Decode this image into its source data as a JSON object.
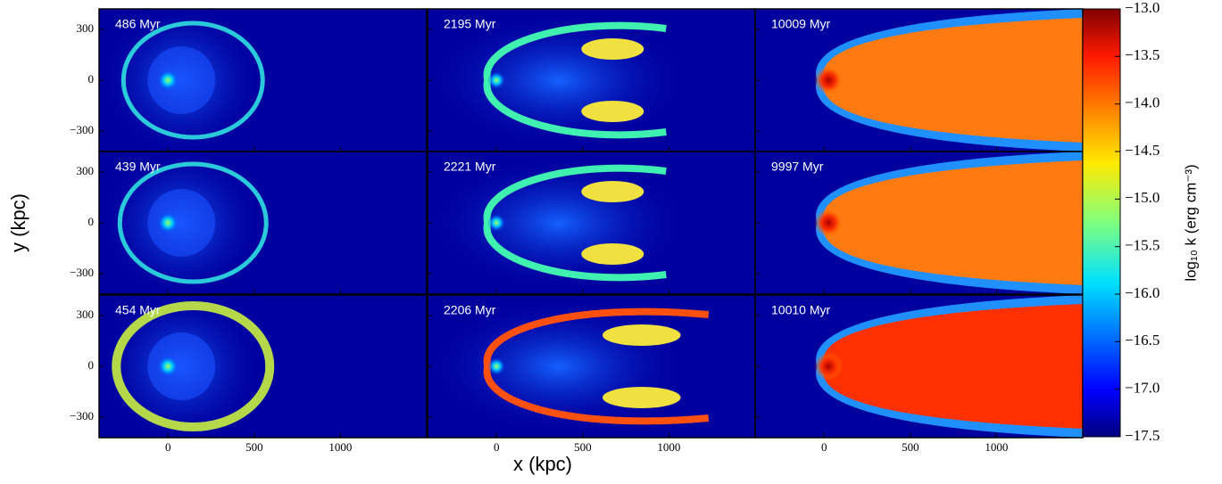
{
  "chart_data": {
    "type": "image-grid",
    "xlabel": "x (kpc)",
    "ylabel": "y (kpc)",
    "xlim": [
      -400,
      1500
    ],
    "xticks": [
      0,
      500,
      1000
    ],
    "ylim": [
      -420,
      420
    ],
    "yticks": [
      {
        "value": -300,
        "label": "−300"
      },
      0,
      300
    ],
    "colormap": "jet",
    "panels": [
      {
        "label": "486 Myr"
      },
      {
        "label": "2195 Myr"
      },
      {
        "label": "10009 Myr"
      },
      {
        "label": "439 Myr"
      },
      {
        "label": "2221 Myr"
      },
      {
        "label": "9997 Myr"
      },
      {
        "label": "454 Myr"
      },
      {
        "label": "2206 Myr"
      },
      {
        "label": "10010 Myr"
      }
    ],
    "colorbar": {
      "label": "log₁₀ k (erg cm⁻³)",
      "lim": [
        -17.5,
        -13.0
      ],
      "ticks": [
        {
          "value": -13.0,
          "label": "−13.0"
        },
        {
          "value": -13.5,
          "label": "−13.5"
        },
        {
          "value": -14.0,
          "label": "−14.0"
        },
        {
          "value": -14.5,
          "label": "−14.5"
        },
        {
          "value": -15.0,
          "label": "−15.0"
        },
        {
          "value": -15.5,
          "label": "−15.5"
        },
        {
          "value": -16.0,
          "label": "−16.0"
        },
        {
          "value": -16.5,
          "label": "−16.5"
        },
        {
          "value": -17.0,
          "label": "−17.0"
        },
        {
          "value": -17.5,
          "label": "−17.5"
        }
      ]
    }
  }
}
